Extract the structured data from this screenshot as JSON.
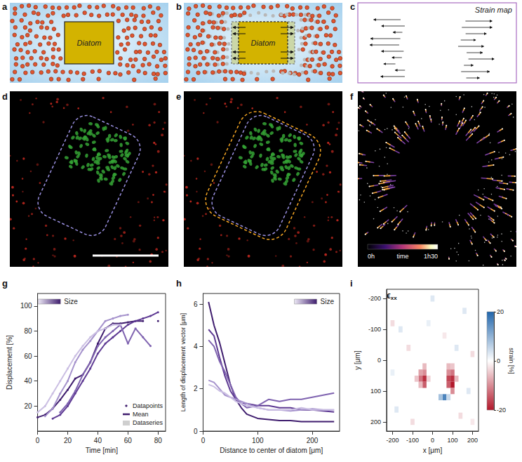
{
  "panels": {
    "a": {
      "label": "a",
      "text": "Diatom"
    },
    "b": {
      "label": "b",
      "text": "Diatom"
    },
    "c": {
      "label": "c",
      "title": "Strain map"
    },
    "d": {
      "label": "d"
    },
    "e": {
      "label": "e"
    },
    "f": {
      "label": "f",
      "colorbar_labels": [
        "0h",
        "time",
        "1h30"
      ]
    }
  },
  "chart_data": [
    {
      "panel_label": "g",
      "type": "line",
      "x_label": "Time [min]",
      "y_label": "Displacement [%]",
      "marker": "circle",
      "grid": false,
      "x": [
        0,
        5,
        10,
        15,
        20,
        25,
        30,
        35,
        40,
        45,
        50,
        55,
        60,
        65,
        70,
        75,
        80
      ],
      "series": [
        {
          "color": "#3f1d6e",
          "values": [
            11,
            13,
            18,
            25,
            33,
            42,
            45,
            55,
            70,
            82,
            86,
            86,
            87,
            88,
            88,
            null,
            88
          ]
        },
        {
          "color": "#5e3a93",
          "values": [
            null,
            null,
            10,
            13,
            20,
            30,
            40,
            50,
            62,
            70,
            75,
            80,
            85,
            88,
            90,
            92,
            95
          ]
        },
        {
          "color": "#7f63b0",
          "values": [
            null,
            null,
            null,
            15,
            22,
            32,
            45,
            55,
            68,
            75,
            80,
            85,
            70,
            82,
            75,
            68,
            null
          ]
        },
        {
          "color": "#a592cc",
          "values": [
            null,
            12,
            18,
            30,
            40,
            55,
            65,
            72,
            80,
            88,
            90,
            92,
            93,
            null,
            null,
            null,
            null
          ]
        },
        {
          "color": "#cbbfe3",
          "values": [
            15,
            20,
            30,
            40,
            50,
            60,
            68,
            75,
            80,
            82,
            85,
            85,
            null,
            null,
            null,
            null,
            null
          ]
        }
      ],
      "xlim": [
        0,
        85
      ],
      "xticks": [
        0,
        20,
        40,
        60,
        80
      ],
      "ylim": [
        0,
        110
      ],
      "yticks": [
        20,
        40,
        60,
        80,
        100
      ],
      "legend_items": [
        "Datapoints",
        "Mean",
        "Dataseries"
      ],
      "size_key": "Size"
    },
    {
      "panel_label": "h",
      "type": "line",
      "x_label": "Distance to center of diatom [μm]",
      "y_label": "Length of displacement vector [μm]",
      "grid": false,
      "x": [
        10,
        20,
        30,
        40,
        50,
        60,
        70,
        80,
        100,
        120,
        140,
        160,
        180,
        200,
        220,
        240
      ],
      "series": [
        {
          "color": "#3f1d6e",
          "values": [
            6.1,
            5.0,
            4.2,
            3.2,
            2.2,
            1.5,
            1.1,
            0.8,
            0.6,
            0.55,
            0.5,
            0.5,
            0.45,
            0.45,
            0.45,
            0.45
          ]
        },
        {
          "color": "#5e3a93",
          "values": [
            4.8,
            4.5,
            3.5,
            2.6,
            1.9,
            1.5,
            1.3,
            1.3,
            1.2,
            1.2,
            1.1,
            1.1,
            1.0,
            1.0,
            0.95,
            0.9
          ]
        },
        {
          "color": "#7f63b0",
          "values": [
            4.3,
            4.0,
            3.3,
            2.8,
            2.2,
            1.6,
            1.3,
            1.1,
            1.2,
            1.5,
            1.4,
            1.5,
            1.5,
            1.6,
            1.7,
            1.8
          ]
        },
        {
          "color": "#a592cc",
          "values": [
            2.4,
            2.3,
            2.0,
            1.7,
            1.6,
            1.5,
            1.4,
            1.3,
            1.1,
            1.0,
            1.0,
            0.95,
            1.0,
            1.05,
            1.0,
            1.0
          ]
        },
        {
          "color": "#cbbfe3",
          "values": [
            2.2,
            2.1,
            1.9,
            1.8,
            1.6,
            1.4,
            1.3,
            1.2,
            1.1,
            1.0,
            1.0,
            1.0,
            1.1,
            1.0,
            1.0,
            1.0
          ]
        }
      ],
      "xlim": [
        0,
        250
      ],
      "xticks": [
        0,
        100,
        200
      ],
      "ylim": [
        0,
        6.5
      ],
      "yticks": [
        0,
        2,
        4,
        6
      ],
      "size_key": "Size"
    },
    {
      "panel_label": "i",
      "type": "heatmap",
      "title": "ϵxx",
      "x_label": "x [μm]",
      "y_label": "y [μm]",
      "xlim": [
        -230,
        230
      ],
      "xticks": [
        -200,
        -100,
        0,
        100,
        200
      ],
      "ylim": [
        -230,
        230
      ],
      "yticks": [
        -200,
        -100,
        0,
        100,
        200
      ],
      "cell_size": 20,
      "cells": [
        [
          -60,
          40,
          -8
        ],
        [
          -60,
          60,
          -12
        ],
        [
          -40,
          40,
          -10
        ],
        [
          -40,
          60,
          -18
        ],
        [
          -40,
          80,
          -14
        ],
        [
          -60,
          80,
          -6
        ],
        [
          -80,
          60,
          -5
        ],
        [
          -40,
          20,
          -6
        ],
        [
          -20,
          60,
          -4
        ],
        [
          80,
          20,
          -6
        ],
        [
          80,
          40,
          -10
        ],
        [
          100,
          40,
          -12
        ],
        [
          100,
          60,
          -18
        ],
        [
          100,
          80,
          -20
        ],
        [
          80,
          80,
          -14
        ],
        [
          80,
          60,
          -16
        ],
        [
          100,
          100,
          -10
        ],
        [
          120,
          60,
          -6
        ],
        [
          100,
          20,
          -5
        ],
        [
          60,
          120,
          16
        ],
        [
          40,
          120,
          8
        ],
        [
          80,
          120,
          5
        ],
        [
          -200,
          -120,
          -3
        ],
        [
          -160,
          -100,
          3
        ],
        [
          -120,
          -40,
          -3
        ],
        [
          160,
          -160,
          3
        ],
        [
          200,
          -20,
          -3
        ],
        [
          -180,
          160,
          3
        ],
        [
          140,
          180,
          -3
        ],
        [
          0,
          -200,
          3
        ],
        [
          -100,
          200,
          -3
        ],
        [
          180,
          100,
          3
        ],
        [
          -20,
          -120,
          2
        ],
        [
          60,
          -80,
          -2
        ],
        [
          -200,
          40,
          2
        ],
        [
          200,
          200,
          -2
        ],
        [
          120,
          -40,
          3
        ]
      ],
      "colorbar": {
        "range": [
          -20,
          20
        ],
        "ticks": [
          -20,
          0,
          20
        ],
        "label": "strain [%]"
      }
    }
  ]
}
